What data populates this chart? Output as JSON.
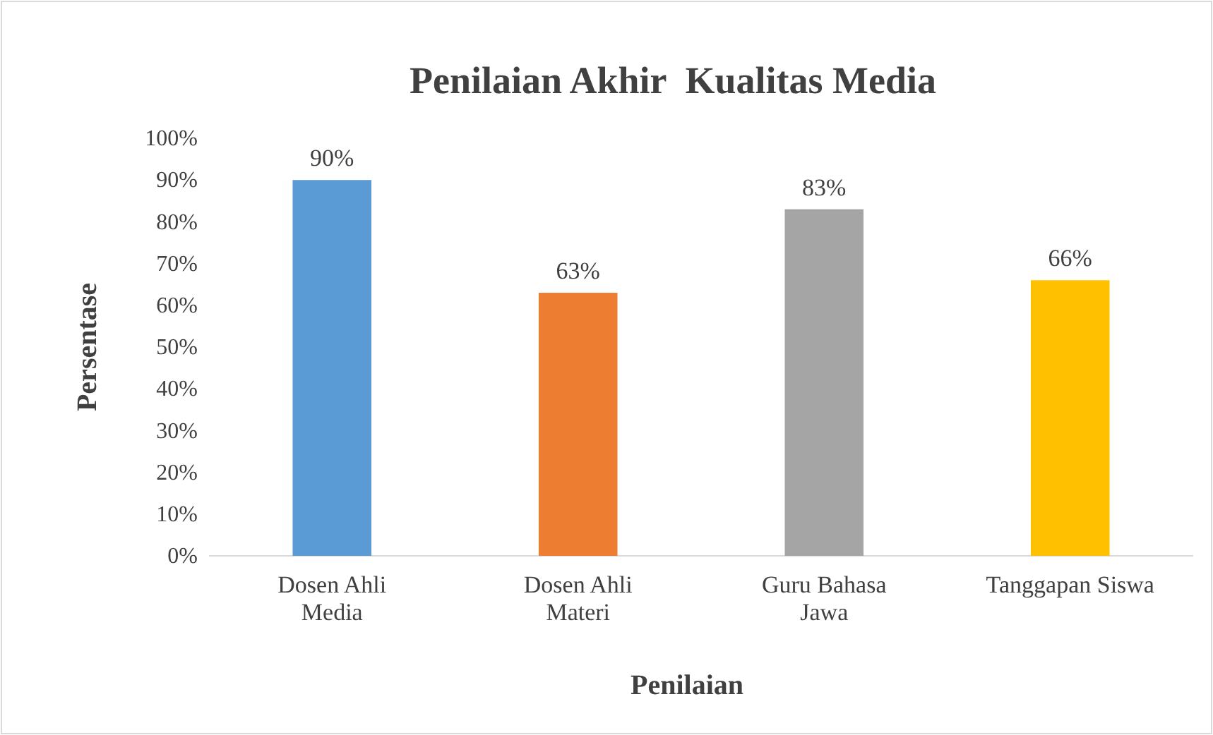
{
  "chart_data": {
    "type": "bar",
    "title": "Penilaian Akhir  Kualitas Media",
    "xlabel": "Penilaian",
    "ylabel": "Persentase",
    "categories": [
      "Dosen Ahli Media",
      "Dosen Ahli Materi",
      "Guru Bahasa Jawa",
      "Tanggapan Siswa"
    ],
    "values": [
      90,
      63,
      83,
      66
    ],
    "colors": [
      "#5b9bd5",
      "#ed7d31",
      "#a5a5a5",
      "#ffc000"
    ],
    "value_labels": [
      "90%",
      "63%",
      "83%",
      "66%"
    ],
    "ylim": [
      0,
      100
    ],
    "yticks": [
      {
        "value": 0,
        "label": "0%"
      },
      {
        "value": 10,
        "label": "10%"
      },
      {
        "value": 20,
        "label": "20%"
      },
      {
        "value": 30,
        "label": "30%"
      },
      {
        "value": 40,
        "label": "40%"
      },
      {
        "value": 50,
        "label": "50%"
      },
      {
        "value": 60,
        "label": "60%"
      },
      {
        "value": 70,
        "label": "70%"
      },
      {
        "value": 80,
        "label": "80%"
      },
      {
        "value": 90,
        "label": "90%"
      },
      {
        "value": 100,
        "label": "100%"
      }
    ],
    "grid": false
  }
}
